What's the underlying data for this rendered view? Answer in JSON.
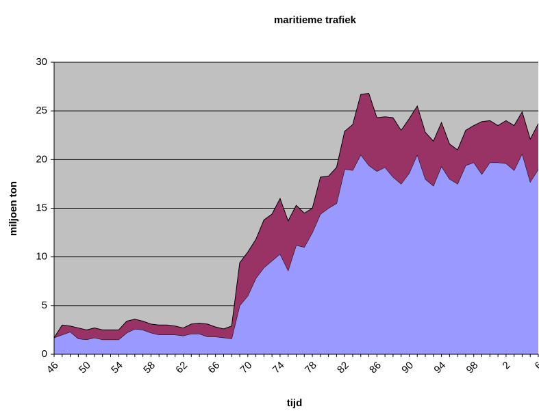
{
  "chart_data": {
    "type": "stacked_area",
    "title": "maritieme trafiek",
    "xlabel": "tijd",
    "ylabel": "miljoen ton",
    "categories": [
      "46",
      null,
      null,
      null,
      "50",
      null,
      null,
      null,
      "54",
      null,
      null,
      null,
      "58",
      null,
      null,
      null,
      "62",
      null,
      null,
      null,
      "66",
      null,
      null,
      null,
      "70",
      null,
      null,
      null,
      "74",
      null,
      null,
      null,
      "78",
      null,
      null,
      null,
      "82",
      null,
      null,
      null,
      "86",
      null,
      null,
      null,
      "90",
      null,
      null,
      null,
      "94",
      null,
      null,
      null,
      "98",
      null,
      null,
      null,
      "2",
      null,
      null,
      null,
      "6"
    ],
    "series": [
      {
        "color": "#9999ff",
        "values": [
          1.7,
          2.0,
          2.3,
          1.6,
          1.5,
          1.7,
          1.5,
          1.5,
          1.5,
          2.2,
          2.6,
          2.5,
          2.2,
          2.0,
          2.0,
          2.0,
          1.9,
          2.1,
          2.1,
          1.8,
          1.8,
          1.7,
          1.6,
          5.0,
          6.0,
          7.8,
          8.9,
          9.6,
          10.3,
          8.6,
          11.2,
          11.0,
          12.5,
          14.4,
          15.0,
          15.5,
          19.0,
          18.9,
          20.5,
          19.4,
          18.8,
          19.2,
          18.2,
          17.5,
          18.6,
          20.5,
          18.0,
          17.3,
          19.3,
          18.0,
          17.5,
          19.4,
          19.7,
          18.5,
          19.7,
          19.7,
          19.6,
          18.9,
          20.6,
          17.7,
          19.0
        ]
      },
      {
        "color": "#993366",
        "values": [
          0,
          1.0,
          0.6,
          1.1,
          1.0,
          1.0,
          1.0,
          1.0,
          1.0,
          1.2,
          1.0,
          0.9,
          0.9,
          1.0,
          1.0,
          0.9,
          0.8,
          1.0,
          1.1,
          1.3,
          1.0,
          0.9,
          1.3,
          4.4,
          4.5,
          4.0,
          4.9,
          4.8,
          5.7,
          5.1,
          4.1,
          3.5,
          2.5,
          3.8,
          3.3,
          3.7,
          3.9,
          4.7,
          6.2,
          7.4,
          5.5,
          5.2,
          6.1,
          5.5,
          5.6,
          5.0,
          4.8,
          4.6,
          4.5,
          3.6,
          3.5,
          3.6,
          3.8,
          5.4,
          4.3,
          3.8,
          4.4,
          4.6,
          4.3,
          4.4,
          4.7
        ]
      }
    ],
    "ylim": [
      0,
      30
    ],
    "yticks": [
      0,
      5,
      10,
      15,
      20,
      25,
      30
    ],
    "grid": true,
    "plot_background": "#c0c0c0"
  }
}
